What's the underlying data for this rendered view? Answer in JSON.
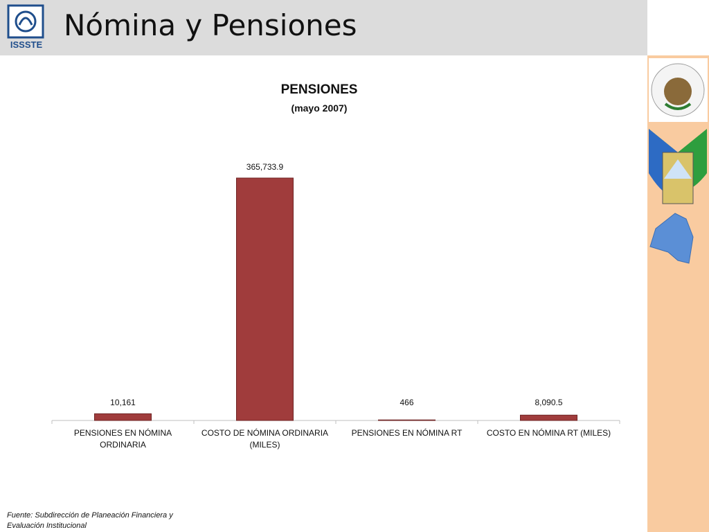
{
  "header": {
    "title": "Nómina y Pensiones",
    "logo_text": "ISSSTE"
  },
  "chart_data": {
    "type": "bar",
    "title": "PENSIONES",
    "subtitle": "(mayo 2007)",
    "categories": [
      "PENSIONES EN NÓMINA ORDINARIA",
      "COSTO DE NÓMINA ORDINARIA (MILES)",
      "PENSIONES EN NÓMINA RT",
      "COSTO EN NÓMINA RT (MILES)"
    ],
    "values": [
      10161,
      365733.9,
      466,
      8090.5
    ],
    "value_labels": [
      "10,161",
      "365,733.9",
      "466",
      "8,090.5"
    ],
    "color": "#a03c3c"
  },
  "footer": {
    "source": "Fuente: Subdirección de Planeación Financiera y Evaluación Institucional"
  }
}
